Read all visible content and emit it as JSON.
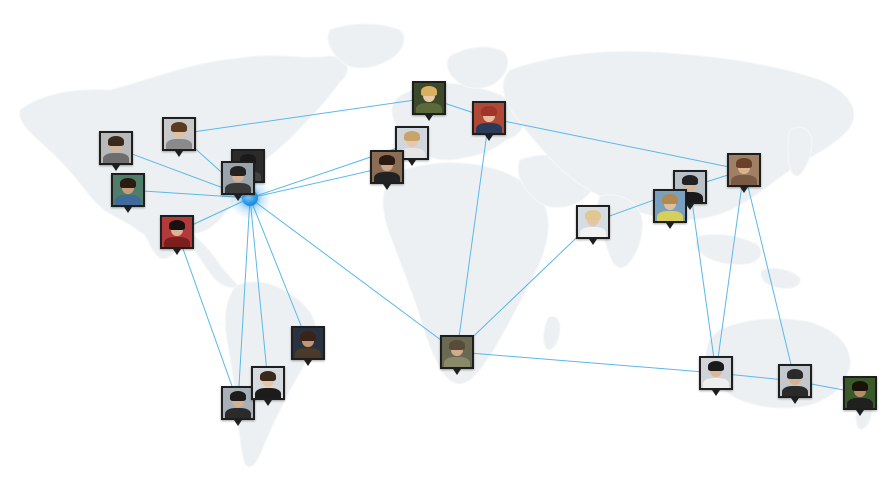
{
  "colors": {
    "link": "#5bb8e8",
    "hub": "#2a97e6",
    "map": "#eef0f2",
    "frame": "#1e1e1e"
  },
  "map": {
    "icon": "world-map"
  },
  "hub": {
    "icon": "location-hub-dot"
  },
  "people": [
    {
      "id": "p1",
      "skin": "#d8b59a",
      "hair": "#3a2a1e",
      "shirt": "#6e6e6e",
      "bg": "#b9b9b9"
    },
    {
      "id": "p2",
      "skin": "#e0c0a0",
      "hair": "#5a3a22",
      "shirt": "#8a8a8a",
      "bg": "#c8c8c8"
    },
    {
      "id": "p3",
      "skin": "#c99c7e",
      "hair": "#2a1c12",
      "shirt": "#3f6a9a",
      "bg": "#4e7d6a"
    },
    {
      "id": "p4",
      "skin": "#cfa58a",
      "hair": "#1a1a1a",
      "shirt": "#444444",
      "bg": "#2b2b2b"
    },
    {
      "id": "p5",
      "skin": "#d6ae92",
      "hair": "#222222",
      "shirt": "#3a3a3a",
      "bg": "#9aa4ad"
    },
    {
      "id": "p6",
      "skin": "#dbb39a",
      "hair": "#1a1010",
      "shirt": "#7a1e1e",
      "bg": "#b33a3a"
    },
    {
      "id": "p7",
      "skin": "#e9c9a6",
      "hair": "#d9b060",
      "shirt": "#5a6a3a",
      "bg": "#3c4a2a"
    },
    {
      "id": "p8",
      "skin": "#e8bba0",
      "hair": "#a0342a",
      "shirt": "#2a3a5a",
      "bg": "#b04838"
    },
    {
      "id": "p9",
      "skin": "#e8c8ac",
      "hair": "#c9a46a",
      "shirt": "#e6e6e6",
      "bg": "#cfd6dc"
    },
    {
      "id": "p10",
      "skin": "#d2a488",
      "hair": "#2a1a12",
      "shirt": "#222222",
      "bg": "#8b6c55"
    },
    {
      "id": "p11",
      "skin": "#e6c4a6",
      "hair": "#e0c890",
      "shirt": "#f2f2f2",
      "bg": "#d5dde3"
    },
    {
      "id": "p12",
      "skin": "#d9b090",
      "hair": "#6a4028",
      "shirt": "#7a5a44",
      "bg": "#a08064"
    },
    {
      "id": "p13",
      "skin": "#d8b498",
      "hair": "#222222",
      "shirt": "#1a1a1a",
      "bg": "#b8c0c8"
    },
    {
      "id": "p14",
      "skin": "#e0be9c",
      "hair": "#b08a50",
      "shirt": "#d6d05a",
      "bg": "#7aa0c0"
    },
    {
      "id": "p15",
      "skin": "#c69476",
      "hair": "#3a2418",
      "shirt": "#4a3a2a",
      "bg": "#2a3240"
    },
    {
      "id": "p16",
      "skin": "#d2aa8c",
      "hair": "#5a4a3a",
      "shirt": "#8a8a6a",
      "bg": "#6a6a52"
    },
    {
      "id": "p17",
      "skin": "#dcb698",
      "hair": "#1a1a1a",
      "shirt": "#eeeeee",
      "bg": "#d0d4d8"
    },
    {
      "id": "p18",
      "skin": "#d6b294",
      "hair": "#2a2a2a",
      "shirt": "#2a2a2a",
      "bg": "#c4c8cc"
    },
    {
      "id": "p19",
      "skin": "#b98a66",
      "hair": "#1a1208",
      "shirt": "#202020",
      "bg": "#3a5a2a"
    },
    {
      "id": "p20",
      "skin": "#d8b090",
      "hair": "#1c1c1c",
      "shirt": "#2a2a2a",
      "bg": "#a8b0b8"
    },
    {
      "id": "p21",
      "skin": "#e6c4a8",
      "hair": "#3a2a1e",
      "shirt": "#1c1c1c",
      "bg": "#d6dade"
    }
  ]
}
